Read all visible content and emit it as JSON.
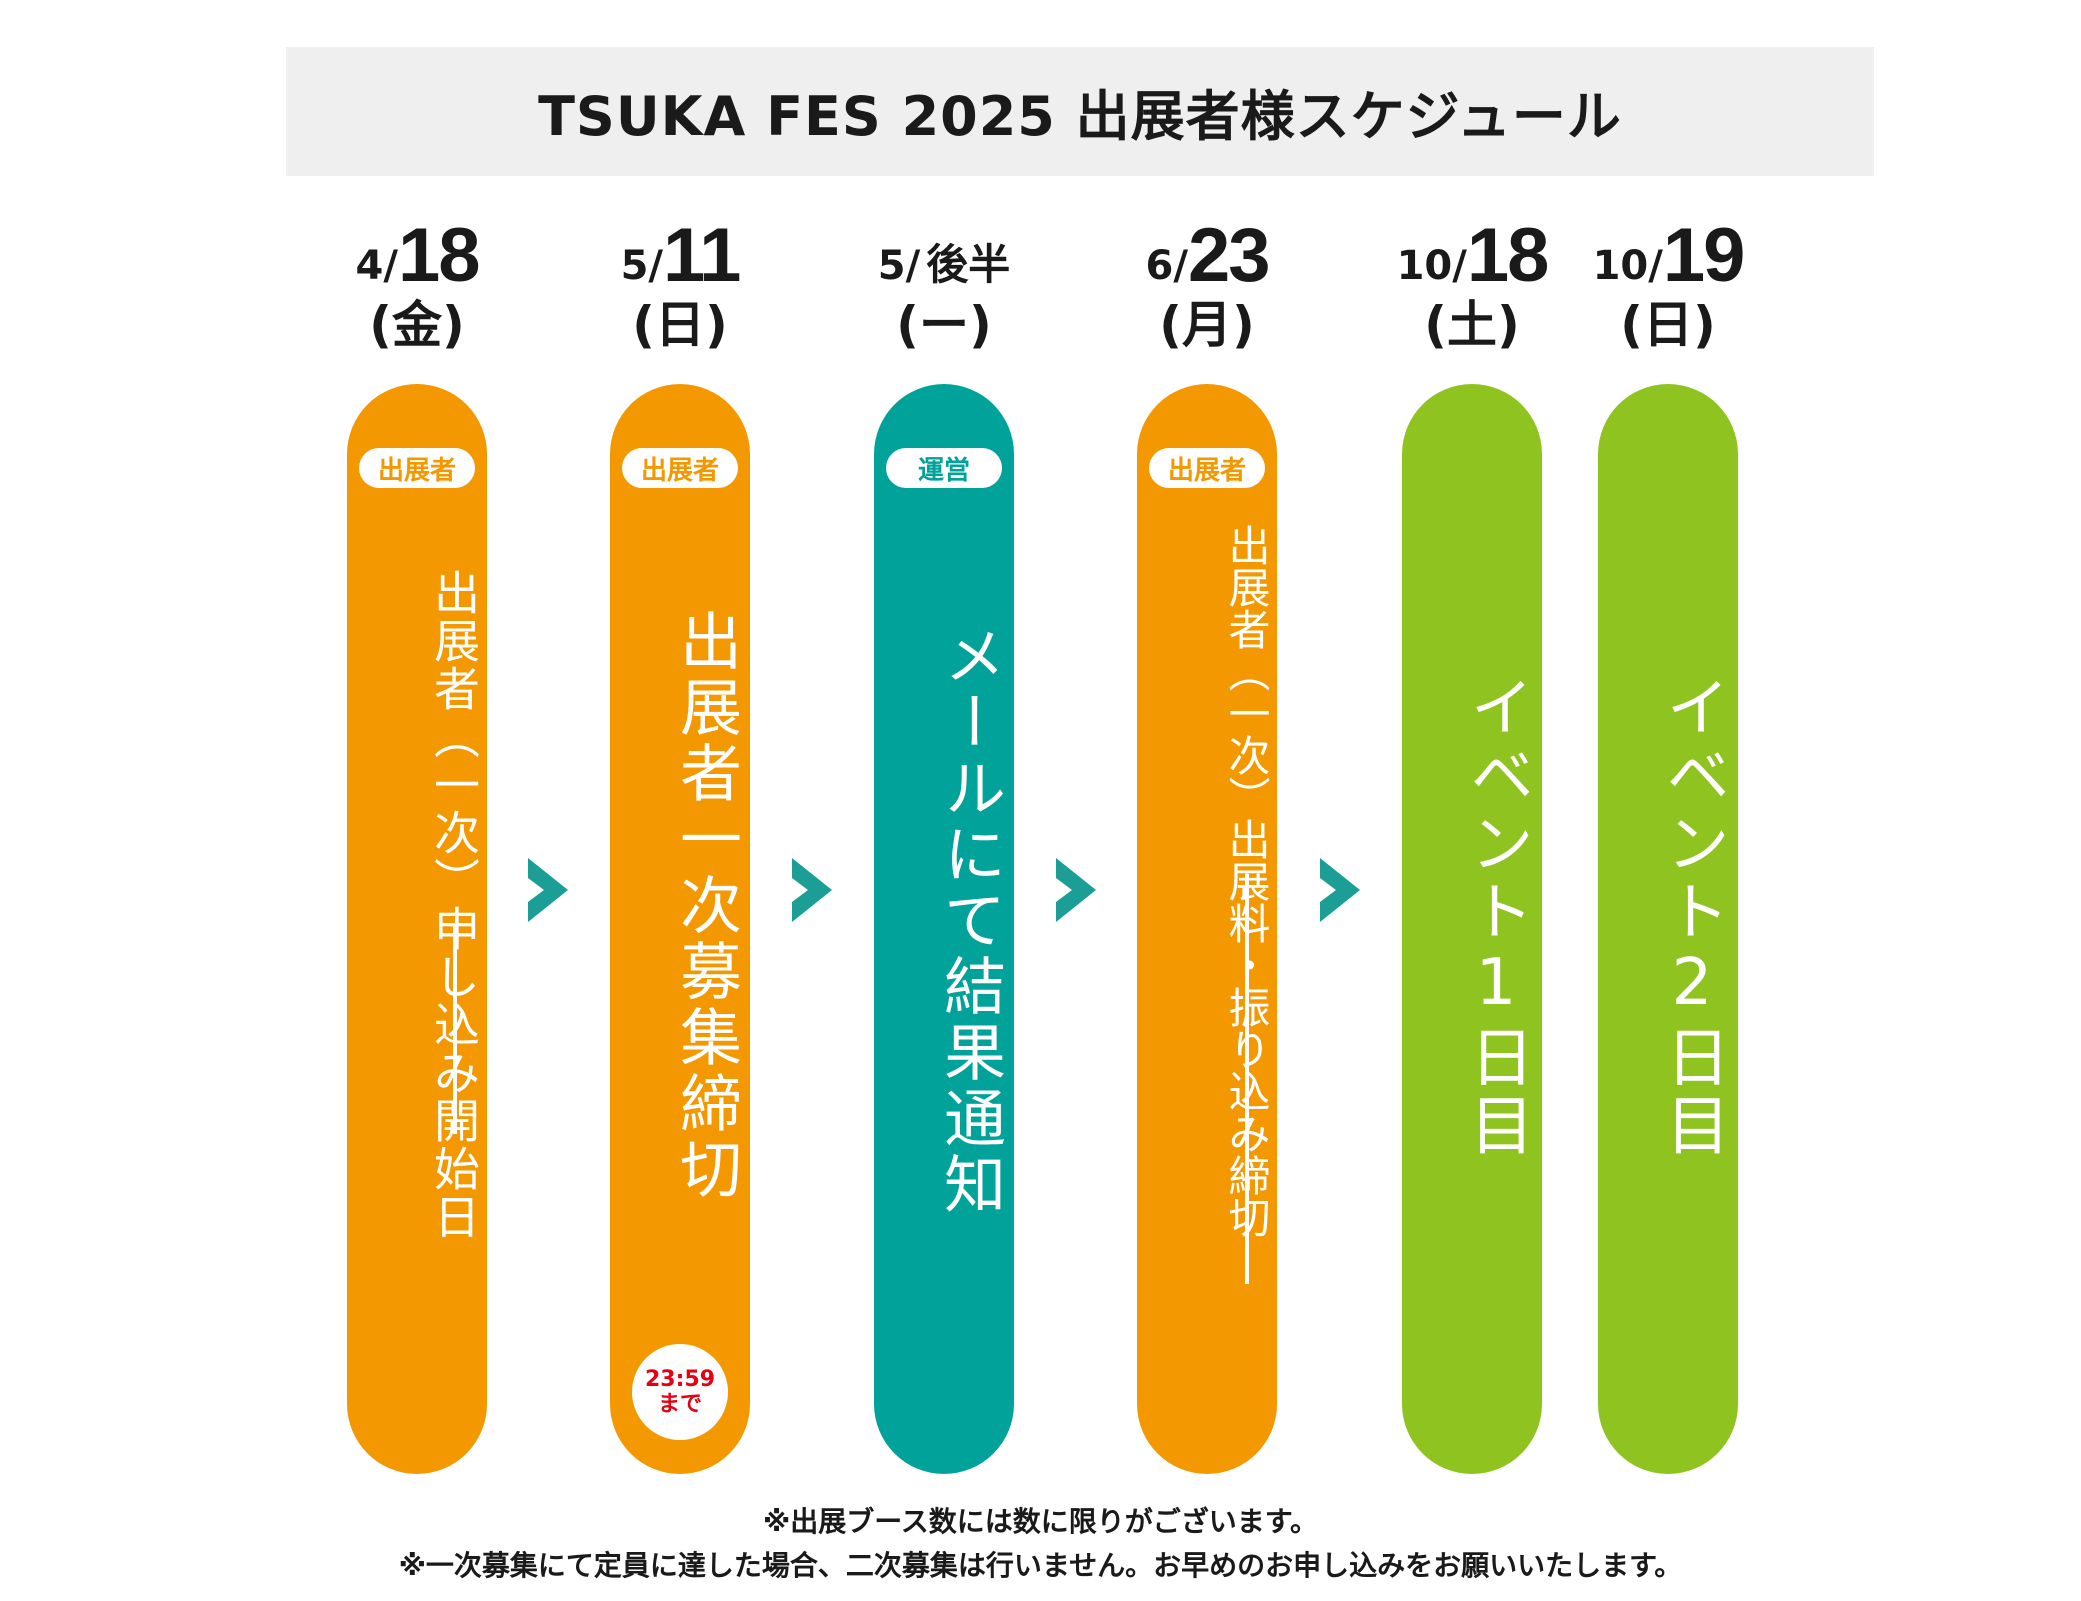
{
  "title": "TSUKA FES 2025 出展者様スケジュール",
  "colors": {
    "exhibitor": "#f39800",
    "operation": "#00a29a",
    "event": "#8fc31f",
    "arrow": "#1a9e96",
    "deadline_text": "#e60012"
  },
  "steps": [
    {
      "month": "4/",
      "day": "18",
      "weekday": "(金)",
      "tag": "出展者",
      "text": "出展者（一次）申し込み開始日",
      "color": "orange"
    },
    {
      "month": "5/",
      "day": "11",
      "weekday": "(日)",
      "tag": "出展者",
      "text": "出展者一次募集締切",
      "deadline_time": "23:59",
      "deadline_suffix": "まで",
      "color": "orange"
    },
    {
      "month": "5/",
      "day_text": "後半",
      "weekday": "(ー)",
      "tag": "運営",
      "text": "メールにて結果通知",
      "color": "teal"
    },
    {
      "month": "6/",
      "day": "23",
      "weekday": "(月)",
      "tag": "出展者",
      "text": "出展者（一次）出展料・振り込み締切",
      "color": "orange"
    },
    {
      "month": "10/",
      "day": "18",
      "weekday": "(土)",
      "text": "イベント1日目",
      "color": "green"
    },
    {
      "month": "10/",
      "day": "19",
      "weekday": "(日)",
      "text": "イベント2日目",
      "color": "green"
    }
  ],
  "arrow_icon": "chevron-right-icon",
  "notes": [
    "※出展ブース数には数に限りがございます。",
    "※一次募集にて定員に達した場合、二次募集は行いません。お早めのお申し込みをお願いいたします。"
  ]
}
